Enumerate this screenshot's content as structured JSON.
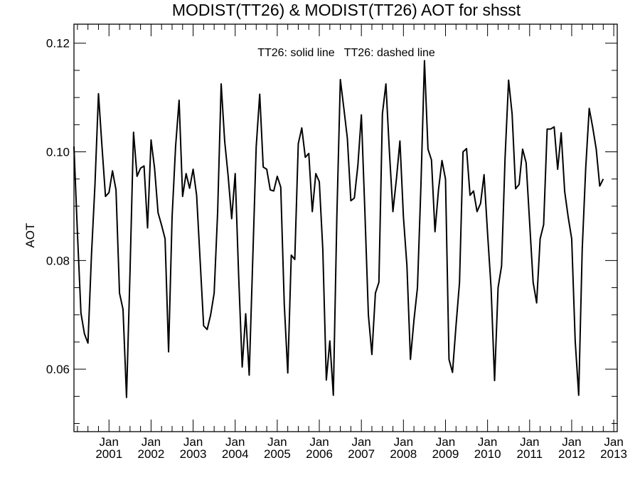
{
  "chart_data": {
    "type": "line",
    "title": "MODIST(TT26) & MODIST(TT26)  AOT for shsst",
    "ylabel": "AOT",
    "xlabel": "",
    "annotation": "TT26: solid line   TT26: dashed line",
    "xlim": [
      2000.167,
      2013.083
    ],
    "ylim": [
      0.0485,
      0.1235
    ],
    "yticks": [
      "0.06",
      "0.08",
      "0.10",
      "0.12"
    ],
    "ytick_values": [
      0.06,
      0.08,
      0.1,
      0.12
    ],
    "xtick_month": "Jan",
    "xticks": [
      "2001",
      "2002",
      "2003",
      "2004",
      "2005",
      "2006",
      "2007",
      "2008",
      "2009",
      "2010",
      "2011",
      "2012",
      "2013"
    ],
    "grid": false,
    "series": [
      {
        "name": "TT26",
        "style": "solid",
        "color": "#000000",
        "start": "2000-03",
        "interval": "monthly",
        "values": [
          0.101,
          0.085,
          0.0703,
          0.0665,
          0.0648,
          0.081,
          0.094,
          0.1107,
          0.101,
          0.0918,
          0.0925,
          0.0965,
          0.093,
          0.074,
          0.071,
          0.0548,
          0.078,
          0.1036,
          0.0955,
          0.097,
          0.0974,
          0.086,
          0.1022,
          0.097,
          0.0888,
          0.0865,
          0.084,
          0.0632,
          0.088,
          0.101,
          0.1095,
          0.0918,
          0.096,
          0.0933,
          0.0968,
          0.092,
          0.08,
          0.068,
          0.0673,
          0.07,
          0.074,
          0.089,
          0.1125,
          0.102,
          0.0955,
          0.0877,
          0.096,
          0.077,
          0.0604,
          0.0702,
          0.0589,
          0.08,
          0.101,
          0.1106,
          0.0972,
          0.0968,
          0.093,
          0.0928,
          0.0955,
          0.0935,
          0.072,
          0.0593,
          0.081,
          0.0802,
          0.1015,
          0.1044,
          0.099,
          0.0997,
          0.089,
          0.096,
          0.0945,
          0.082,
          0.058,
          0.0652,
          0.0552,
          0.088,
          0.1133,
          0.108,
          0.1025,
          0.091,
          0.0915,
          0.0975,
          0.1068,
          0.089,
          0.07,
          0.0627,
          0.074,
          0.076,
          0.107,
          0.1125,
          0.1,
          0.089,
          0.095,
          0.102,
          0.088,
          0.079,
          0.0618,
          0.069,
          0.075,
          0.094,
          0.1168,
          0.1005,
          0.0985,
          0.0853,
          0.093,
          0.0984,
          0.095,
          0.0618,
          0.0594,
          0.068,
          0.076,
          0.1,
          0.1006,
          0.092,
          0.0928,
          0.089,
          0.0905,
          0.0958,
          0.085,
          0.075,
          0.0579,
          0.075,
          0.079,
          0.099,
          0.1132,
          0.107,
          0.0932,
          0.094,
          0.1005,
          0.098,
          0.087,
          0.076,
          0.0722,
          0.084,
          0.0866,
          0.1042,
          0.1042,
          0.1046,
          0.0968,
          0.1035,
          0.0927,
          0.088,
          0.084,
          0.0652,
          0.0552,
          0.082,
          0.097,
          0.108,
          0.1045,
          0.1005,
          0.0937,
          0.095
        ]
      }
    ]
  }
}
